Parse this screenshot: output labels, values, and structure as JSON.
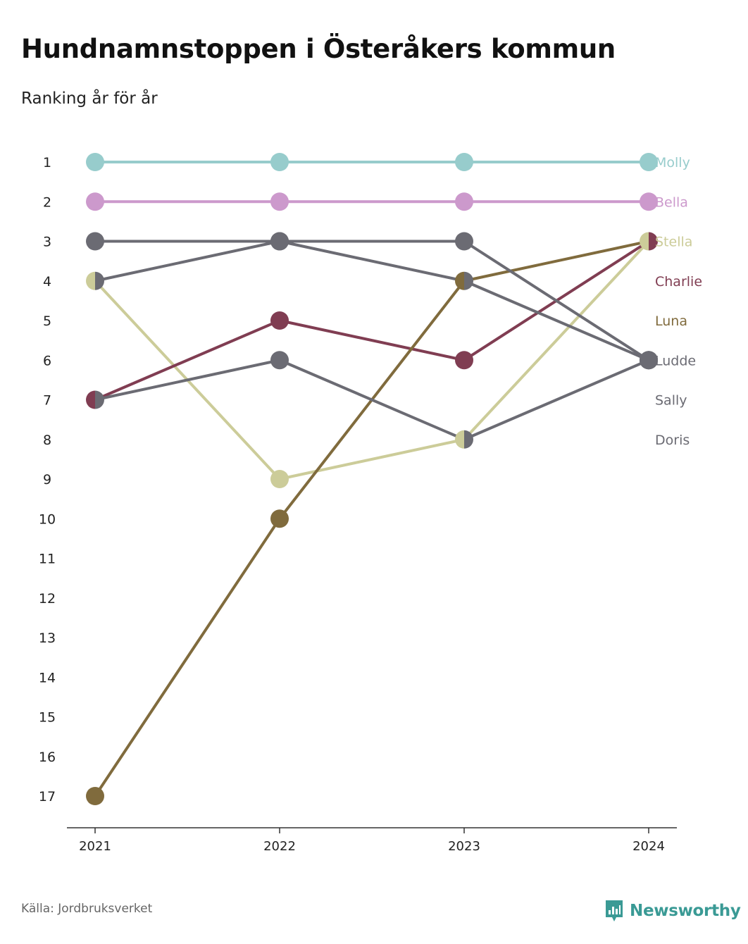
{
  "header": {
    "title": "Hundnamnstoppen i Österåkers kommun",
    "subtitle": "Ranking år för år"
  },
  "footer": {
    "source": "Källa: Jordbruksverket",
    "brand": "Newsworthy",
    "brand_icon": "bar-chart-icon",
    "brand_color": "#3a9a95"
  },
  "chart_data": {
    "type": "line",
    "subtype": "bump",
    "x": [
      "2021",
      "2022",
      "2023",
      "2024"
    ],
    "ylim": [
      1,
      17
    ],
    "y_inverted": true,
    "y_ticks": [
      "1",
      "2",
      "3",
      "4",
      "5",
      "6",
      "7",
      "8",
      "9",
      "10",
      "11",
      "12",
      "13",
      "14",
      "15",
      "16",
      "17"
    ],
    "grid": false,
    "legend": "right-end labels",
    "series": [
      {
        "name": "Molly",
        "values": [
          1,
          1,
          1,
          1
        ],
        "color": "#97cccc"
      },
      {
        "name": "Bella",
        "values": [
          2,
          2,
          2,
          2
        ],
        "color": "#cc99cc"
      },
      {
        "name": "Stella",
        "values": [
          4,
          9,
          8,
          3
        ],
        "color": "#cccc99"
      },
      {
        "name": "Charlie",
        "values": [
          7,
          5,
          6,
          3
        ],
        "color": "#803d52"
      },
      {
        "name": "Luna",
        "values": [
          17,
          10,
          4,
          3
        ],
        "color": "#806b3d"
      },
      {
        "name": "Ludde",
        "values": [
          3,
          3,
          3,
          6
        ],
        "color": "#6b6b73"
      },
      {
        "name": "Sally",
        "values": [
          4,
          3,
          4,
          6
        ],
        "color": "#6b6b73"
      },
      {
        "name": "Doris",
        "values": [
          7,
          6,
          8,
          6
        ],
        "color": "#6b6b73"
      }
    ]
  }
}
